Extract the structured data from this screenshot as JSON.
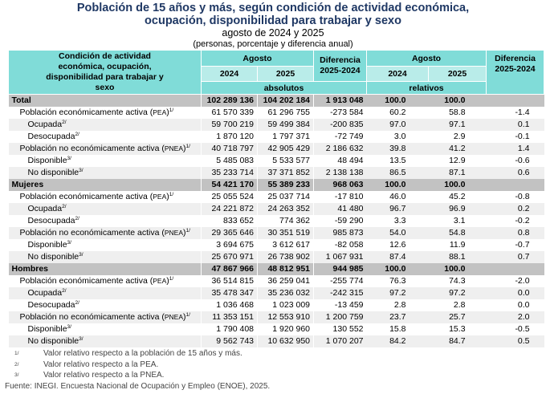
{
  "title": {
    "line1": "Población de 15 años y más, según condición de actividad económica,",
    "line2": "ocupación, disponibilidad para trabajar y sexo",
    "subtitle": "agosto de 2024 y 2025",
    "units": "(personas, porcentaje y diferencia anual)"
  },
  "header": {
    "label_col": "Condición de actividad económica, ocupación, disponibilidad para trabajar y sexo",
    "agosto": "Agosto",
    "y2024": "2024",
    "y2025": "2025",
    "diferencia": "Diferencia 2025-2024",
    "absolutos": "absolutos",
    "relativos": "relativos"
  },
  "rows": [
    {
      "type": "sec",
      "label": "Total",
      "sup": "",
      "a24": "102 289 136",
      "a25": "104 202 184",
      "ad": "1 913 048",
      "r24": "100.0",
      "r25": "100.0",
      "rd": ""
    },
    {
      "type": "l1",
      "label": "Población económicamente activa",
      "abbr": "PEA",
      "sup": "1/",
      "a24": "61 570 339",
      "a25": "61 296 755",
      "ad": "-273 584",
      "r24": "60.2",
      "r25": "58.8",
      "rd": "-1.4"
    },
    {
      "type": "l2",
      "label": "Ocupada",
      "sup": "2/",
      "a24": "59 700 219",
      "a25": "59 499 384",
      "ad": "-200 835",
      "r24": "97.0",
      "r25": "97.1",
      "rd": "0.1"
    },
    {
      "type": "l2",
      "label": "Desocupada",
      "sup": "2/",
      "a24": "1 870 120",
      "a25": "1 797 371",
      "ad": "-72 749",
      "r24": "3.0",
      "r25": "2.9",
      "rd": "-0.1"
    },
    {
      "type": "l1",
      "label": "Población no económicamente activa",
      "abbr": "PNEA",
      "sup": "1/",
      "a24": "40 718 797",
      "a25": "42 905 429",
      "ad": "2 186 632",
      "r24": "39.8",
      "r25": "41.2",
      "rd": "1.4"
    },
    {
      "type": "l2",
      "label": "Disponible",
      "sup": "3/",
      "a24": "5 485 083",
      "a25": "5 533 577",
      "ad": "48 494",
      "r24": "13.5",
      "r25": "12.9",
      "rd": "-0.6"
    },
    {
      "type": "l2",
      "label": "No disponible",
      "sup": "3/",
      "a24": "35 233 714",
      "a25": "37 371 852",
      "ad": "2 138 138",
      "r24": "86.5",
      "r25": "87.1",
      "rd": "0.6"
    },
    {
      "type": "sec",
      "label": "Mujeres",
      "sup": "",
      "a24": "54 421 170",
      "a25": "55 389 233",
      "ad": "968 063",
      "r24": "100.0",
      "r25": "100.0",
      "rd": ""
    },
    {
      "type": "l1",
      "label": "Población económicamente activa",
      "abbr": "PEA",
      "sup": "1/",
      "a24": "25 055 524",
      "a25": "25 037 714",
      "ad": "-17 810",
      "r24": "46.0",
      "r25": "45.2",
      "rd": "-0.8"
    },
    {
      "type": "l2",
      "label": "Ocupada",
      "sup": "2/",
      "a24": "24 221 872",
      "a25": "24 263 352",
      "ad": "41 480",
      "r24": "96.7",
      "r25": "96.9",
      "rd": "0.2"
    },
    {
      "type": "l2",
      "label": "Desocupada",
      "sup": "2/",
      "a24": "833 652",
      "a25": "774 362",
      "ad": "-59 290",
      "r24": "3.3",
      "r25": "3.1",
      "rd": "-0.2"
    },
    {
      "type": "l1",
      "label": "Población no económicamente activa",
      "abbr": "PNEA",
      "sup": "1/",
      "a24": "29 365 646",
      "a25": "30 351 519",
      "ad": "985 873",
      "r24": "54.0",
      "r25": "54.8",
      "rd": "0.8"
    },
    {
      "type": "l2",
      "label": "Disponible",
      "sup": "3/",
      "a24": "3 694 675",
      "a25": "3 612 617",
      "ad": "-82 058",
      "r24": "12.6",
      "r25": "11.9",
      "rd": "-0.7"
    },
    {
      "type": "l2",
      "label": "No disponible",
      "sup": "3/",
      "a24": "25 670 971",
      "a25": "26 738 902",
      "ad": "1 067 931",
      "r24": "87.4",
      "r25": "88.1",
      "rd": "0.7"
    },
    {
      "type": "sec",
      "label": "Hombres",
      "sup": "",
      "a24": "47 867 966",
      "a25": "48 812 951",
      "ad": "944 985",
      "r24": "100.0",
      "r25": "100.0",
      "rd": ""
    },
    {
      "type": "l1",
      "label": "Población económicamente activa",
      "abbr": "PEA",
      "sup": "1/",
      "a24": "36 514 815",
      "a25": "36 259 041",
      "ad": "-255 774",
      "r24": "76.3",
      "r25": "74.3",
      "rd": "-2.0"
    },
    {
      "type": "l2",
      "label": "Ocupada",
      "sup": "2/",
      "a24": "35 478 347",
      "a25": "35 236 032",
      "ad": "-242 315",
      "r24": "97.2",
      "r25": "97.2",
      "rd": "0.0"
    },
    {
      "type": "l2",
      "label": "Desocupada",
      "sup": "2/",
      "a24": "1 036 468",
      "a25": "1 023 009",
      "ad": "-13 459",
      "r24": "2.8",
      "r25": "2.8",
      "rd": "0.0"
    },
    {
      "type": "l1",
      "label": "Población no económicamente activa",
      "abbr": "PNEA",
      "sup": "1/",
      "a24": "11 353 151",
      "a25": "12 553 910",
      "ad": "1 200 759",
      "r24": "23.7",
      "r25": "25.7",
      "rd": "2.0"
    },
    {
      "type": "l2",
      "label": "Disponible",
      "sup": "3/",
      "a24": "1 790 408",
      "a25": "1 920 960",
      "ad": "130 552",
      "r24": "15.8",
      "r25": "15.3",
      "rd": "-0.5"
    },
    {
      "type": "l2",
      "label": "No disponible",
      "sup": "3/",
      "a24": "9 562 743",
      "a25": "10 632 950",
      "ad": "1 070 207",
      "r24": "84.2",
      "r25": "84.7",
      "rd": "0.5"
    }
  ],
  "notes": [
    {
      "mark": "1/",
      "text": "Valor relativo respecto a la población de 15 años y más."
    },
    {
      "mark": "2/",
      "text": "Valor relativo respecto a la PEA."
    },
    {
      "mark": "3/",
      "text": "Valor relativo respecto a la PNEA."
    }
  ],
  "source": "Fuente: INEGI. Encuesta Nacional de Ocupación y Empleo (ENOE), 2025."
}
